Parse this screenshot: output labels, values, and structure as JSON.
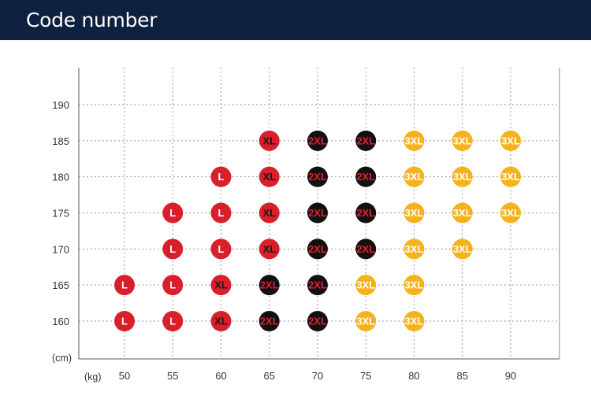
{
  "header": {
    "title": "Code number"
  },
  "colors": {
    "header_bg": "#0e2240",
    "L": "#d91f2b",
    "XL": "#d91f2b",
    "2XL": "#111111",
    "3XL": "#f6b21c"
  },
  "chart_data": {
    "type": "scatter",
    "title": "",
    "xlabel": "(kg)",
    "ylabel": "(cm)",
    "x_ticks": [
      50,
      55,
      60,
      65,
      70,
      75,
      80,
      85,
      90
    ],
    "y_ticks": [
      160,
      165,
      170,
      175,
      180,
      185,
      190
    ],
    "xlim": [
      45,
      95
    ],
    "ylim": [
      155,
      195
    ],
    "grid": true,
    "points": [
      {
        "x": 50,
        "y": 165,
        "size": "L"
      },
      {
        "x": 50,
        "y": 160,
        "size": "L"
      },
      {
        "x": 55,
        "y": 175,
        "size": "L"
      },
      {
        "x": 55,
        "y": 170,
        "size": "L"
      },
      {
        "x": 55,
        "y": 165,
        "size": "L"
      },
      {
        "x": 55,
        "y": 160,
        "size": "L"
      },
      {
        "x": 60,
        "y": 180,
        "size": "L"
      },
      {
        "x": 60,
        "y": 175,
        "size": "L"
      },
      {
        "x": 60,
        "y": 170,
        "size": "L"
      },
      {
        "x": 60,
        "y": 165,
        "size": "XL"
      },
      {
        "x": 60,
        "y": 160,
        "size": "XL"
      },
      {
        "x": 65,
        "y": 185,
        "size": "XL"
      },
      {
        "x": 65,
        "y": 180,
        "size": "XL"
      },
      {
        "x": 65,
        "y": 175,
        "size": "XL"
      },
      {
        "x": 65,
        "y": 170,
        "size": "XL"
      },
      {
        "x": 65,
        "y": 165,
        "size": "2XL"
      },
      {
        "x": 65,
        "y": 160,
        "size": "2XL"
      },
      {
        "x": 70,
        "y": 185,
        "size": "2XL"
      },
      {
        "x": 70,
        "y": 180,
        "size": "2XL"
      },
      {
        "x": 70,
        "y": 175,
        "size": "2XL"
      },
      {
        "x": 70,
        "y": 170,
        "size": "2XL"
      },
      {
        "x": 70,
        "y": 165,
        "size": "2XL"
      },
      {
        "x": 70,
        "y": 160,
        "size": "2XL"
      },
      {
        "x": 75,
        "y": 185,
        "size": "2XL"
      },
      {
        "x": 75,
        "y": 180,
        "size": "2XL"
      },
      {
        "x": 75,
        "y": 175,
        "size": "2XL"
      },
      {
        "x": 75,
        "y": 170,
        "size": "2XL"
      },
      {
        "x": 75,
        "y": 165,
        "size": "3XL"
      },
      {
        "x": 75,
        "y": 160,
        "size": "3XL"
      },
      {
        "x": 80,
        "y": 185,
        "size": "3XL"
      },
      {
        "x": 80,
        "y": 180,
        "size": "3XL"
      },
      {
        "x": 80,
        "y": 175,
        "size": "3XL"
      },
      {
        "x": 80,
        "y": 170,
        "size": "3XL"
      },
      {
        "x": 80,
        "y": 165,
        "size": "3XL"
      },
      {
        "x": 80,
        "y": 160,
        "size": "3XL"
      },
      {
        "x": 85,
        "y": 185,
        "size": "3XL"
      },
      {
        "x": 85,
        "y": 180,
        "size": "3XL"
      },
      {
        "x": 85,
        "y": 175,
        "size": "3XL"
      },
      {
        "x": 85,
        "y": 170,
        "size": "3XL"
      },
      {
        "x": 90,
        "y": 185,
        "size": "3XL"
      },
      {
        "x": 90,
        "y": 180,
        "size": "3XL"
      },
      {
        "x": 90,
        "y": 175,
        "size": "3XL"
      }
    ]
  }
}
